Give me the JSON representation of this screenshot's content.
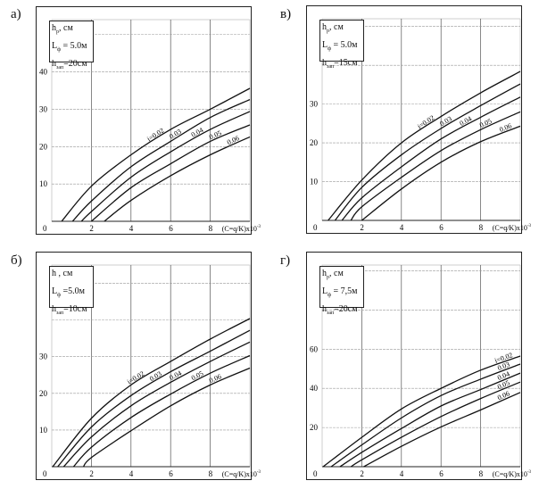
{
  "chart_data": [
    {
      "id": "a",
      "panel_label": "а)",
      "type": "line",
      "legend": [
        {
          "main": "h",
          "sub": "р",
          "rest": ", см"
        },
        {
          "main": "L",
          "sub": "ф",
          "rest": " = 5.0м"
        },
        {
          "main": "h",
          "sub": "зап",
          "rest": "=20см"
        }
      ],
      "xlabel": "(C=q/K)x10",
      "xlabel_exp": "-3",
      "xlim": [
        0,
        10
      ],
      "ylim": [
        0,
        54
      ],
      "xticks": [
        0,
        2,
        4,
        6,
        8
      ],
      "yticks": [
        10,
        20,
        30,
        40
      ],
      "xgrid": [
        2,
        4,
        6,
        8
      ],
      "ygrid": [
        10,
        20,
        30,
        40,
        50
      ],
      "grid": true,
      "x": [
        0,
        2,
        4,
        6,
        8,
        10
      ],
      "series": [
        {
          "name": "i=0.02",
          "start": 0.5,
          "values": [
            null,
            9.4,
            17.8,
            24.6,
            30.0,
            35.6
          ]
        },
        {
          "name": "0.03",
          "start": 1.05,
          "values": [
            null,
            5.4,
            14.6,
            21.4,
            27.8,
            32.6
          ]
        },
        {
          "name": "0.04",
          "start": 1.5,
          "values": [
            null,
            2.6,
            11.8,
            18.6,
            24.6,
            29.4
          ]
        },
        {
          "name": "0.05",
          "start": 2.0,
          "values": [
            null,
            0,
            9.0,
            15.4,
            21.4,
            25.8
          ]
        },
        {
          "name": "0.06",
          "start": 2.65,
          "values": [
            null,
            null,
            5.6,
            12.2,
            17.8,
            22.6
          ]
        }
      ]
    },
    {
      "id": "v",
      "panel_label": "в)",
      "type": "line",
      "legend": [
        {
          "main": "h",
          "sub": "р",
          "rest": ", см"
        },
        {
          "main": "L",
          "sub": "ф",
          "rest": " = 5.0м"
        },
        {
          "main": "h",
          "sub": "зап",
          "rest": "=15см"
        }
      ],
      "xlabel": "(C=q/K)x10",
      "xlabel_exp": "-3",
      "xlim": [
        0,
        10
      ],
      "ylim": [
        0,
        52
      ],
      "xticks": [
        0,
        2,
        4,
        6,
        8
      ],
      "yticks": [
        10,
        20,
        30
      ],
      "xgrid": [
        2,
        4,
        6,
        8
      ],
      "ygrid": [
        10,
        20,
        30,
        40,
        50
      ],
      "grid": true,
      "x": [
        0,
        2,
        4,
        6,
        8,
        10
      ],
      "series": [
        {
          "name": "i=0.02",
          "start": 0.3,
          "values": [
            null,
            10.4,
            20.0,
            26.8,
            32.9,
            38.4
          ]
        },
        {
          "name": "0.03",
          "start": 0.65,
          "values": [
            null,
            8.5,
            16.9,
            23.7,
            29.6,
            35.2
          ]
        },
        {
          "name": "0.04",
          "start": 1.0,
          "values": [
            null,
            5.8,
            13.8,
            21.0,
            26.6,
            31.8
          ]
        },
        {
          "name": "0.05",
          "start": 1.45,
          "values": [
            null,
            3.5,
            11.1,
            18.0,
            23.4,
            28.0
          ]
        },
        {
          "name": "0.06",
          "start": 2.0,
          "values": [
            null,
            0,
            8.1,
            15.0,
            20.3,
            24.3
          ]
        }
      ]
    },
    {
      "id": "b",
      "panel_label": "б)",
      "type": "line",
      "legend": [
        {
          "main": "h",
          "sub": "",
          "rest": " , см"
        },
        {
          "main": "L",
          "sub": "ф",
          "rest": " =5.0м"
        },
        {
          "main": "h",
          "sub": "зап",
          "rest": "=10см"
        }
      ],
      "xlabel": "(C=q/K)x10",
      "xlabel_exp": "-3",
      "xlim": [
        0,
        10
      ],
      "ylim": [
        0,
        55
      ],
      "xticks": [
        0,
        2,
        4,
        6,
        8
      ],
      "yticks": [
        10,
        20,
        30
      ],
      "xgrid": [
        2,
        4,
        6,
        8
      ],
      "ygrid": [
        10,
        20,
        30,
        40,
        50
      ],
      "grid": true,
      "x": [
        0,
        2,
        4,
        6,
        8,
        10
      ],
      "series": [
        {
          "name": "i=0.02",
          "start": 0.05,
          "values": [
            null,
            13.2,
            22.3,
            28.7,
            34.8,
            40.4
          ]
        },
        {
          "name": "0.03",
          "start": 0.3,
          "values": [
            null,
            10.8,
            19.4,
            25.9,
            31.5,
            37.2
          ]
        },
        {
          "name": "0.04",
          "start": 0.6,
          "values": [
            null,
            8.1,
            16.6,
            23.0,
            28.7,
            34.0
          ]
        },
        {
          "name": "0.05",
          "start": 1.1,
          "values": [
            null,
            5.3,
            13.4,
            19.8,
            25.5,
            30.3
          ]
        },
        {
          "name": "0.06",
          "start": 1.6,
          "values": [
            null,
            2.5,
            9.8,
            16.6,
            22.3,
            26.9
          ]
        }
      ]
    },
    {
      "id": "g",
      "panel_label": "г)",
      "type": "line",
      "legend": [
        {
          "main": "h",
          "sub": "р",
          "rest": ", см"
        },
        {
          "main": "L",
          "sub": "ф",
          "rest": " = 7,5м"
        },
        {
          "main": "h",
          "sub": "зап",
          "rest": "=20см"
        }
      ],
      "xlabel": "(C=q/K)x10",
      "xlabel_exp": "-3",
      "xlim": [
        0,
        10
      ],
      "ylim": [
        0,
        103
      ],
      "xticks": [
        0,
        2,
        4,
        6,
        8
      ],
      "yticks": [
        20,
        40,
        60
      ],
      "xgrid": [
        2,
        4,
        6,
        8
      ],
      "ygrid": [
        20,
        40,
        60,
        80,
        100
      ],
      "grid": true,
      "x": [
        0,
        2,
        4,
        6,
        8,
        10
      ],
      "series": [
        {
          "name": "i=0.02",
          "start": 0.05,
          "values": [
            null,
            15.0,
            29.5,
            40.0,
            49.3,
            56.5
          ]
        },
        {
          "name": "0.03",
          "start": 0.45,
          "values": [
            null,
            11.1,
            24.9,
            36.3,
            44.7,
            52.4
          ]
        },
        {
          "name": "0.04",
          "start": 0.9,
          "values": [
            null,
            7.3,
            19.5,
            31.0,
            39.4,
            47.8
          ]
        },
        {
          "name": "0.05",
          "start": 1.45,
          "values": [
            null,
            3.5,
            15.0,
            25.6,
            34.8,
            43.2
          ]
        },
        {
          "name": "0.06",
          "start": 2.1,
          "values": [
            null,
            null,
            10.4,
            20.3,
            29.0,
            37.9
          ]
        }
      ]
    }
  ]
}
